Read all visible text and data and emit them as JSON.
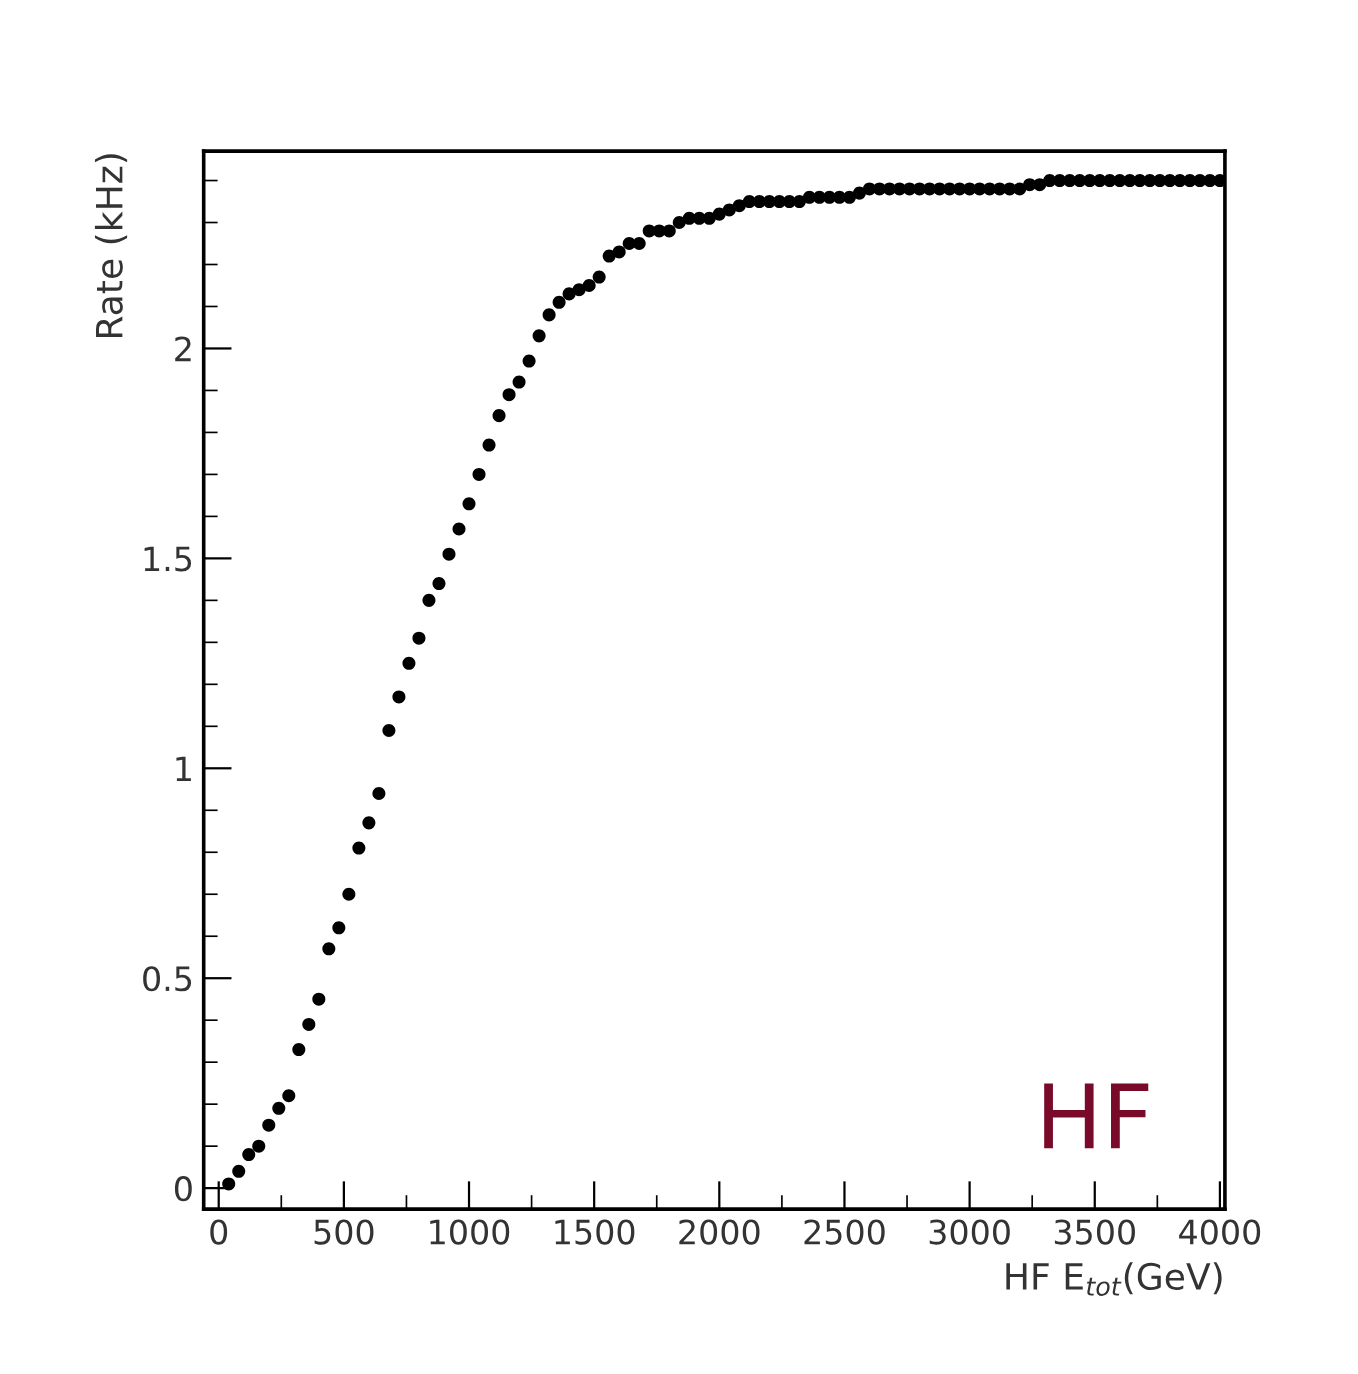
{
  "chart_data": {
    "type": "scatter",
    "xlabel": "HF E$_{tot}$(GeV)",
    "ylabel": "Rate (kHz)",
    "annotations": [
      "HF"
    ],
    "xlim": [
      -60,
      4020
    ],
    "ylim": [
      -0.05,
      2.47
    ],
    "xticks": [
      0,
      500,
      1000,
      1500,
      2000,
      2500,
      3000,
      3500,
      4000
    ],
    "yticks": [
      0,
      0.5,
      1,
      1.5,
      2
    ],
    "grid": false,
    "marker": "circle",
    "series": [
      {
        "color": "#000000",
        "x": [
          40,
          80,
          120,
          160,
          200,
          240,
          280,
          320,
          360,
          400,
          440,
          480,
          520,
          560,
          600,
          640,
          680,
          720,
          760,
          800,
          840,
          880,
          920,
          960,
          1000,
          1040,
          1080,
          1120,
          1160,
          1200,
          1240,
          1280,
          1320,
          1360,
          1400,
          1440,
          1480,
          1520,
          1560,
          1600,
          1640,
          1680,
          1720,
          1760,
          1800,
          1840,
          1880,
          1920,
          1960,
          2000,
          2040,
          2080,
          2120,
          2160,
          2200,
          2240,
          2280,
          2320,
          2360,
          2400,
          2440,
          2480,
          2520,
          2560,
          2600,
          2640,
          2680,
          2720,
          2760,
          2800,
          2840,
          2880,
          2920,
          2960,
          3000,
          3040,
          3080,
          3120,
          3160,
          3200,
          3240,
          3280,
          3320,
          3360,
          3400,
          3440,
          3480,
          3520,
          3560,
          3600,
          3640,
          3680,
          3720,
          3760,
          3800,
          3840,
          3880,
          3920,
          3960,
          4000
        ],
        "values": [
          0.01,
          0.04,
          0.08,
          0.1,
          0.15,
          0.19,
          0.22,
          0.33,
          0.39,
          0.45,
          0.57,
          0.62,
          0.7,
          0.81,
          0.87,
          0.94,
          1.09,
          1.17,
          1.25,
          1.31,
          1.4,
          1.44,
          1.51,
          1.57,
          1.63,
          1.7,
          1.77,
          1.84,
          1.89,
          1.92,
          1.97,
          2.03,
          2.08,
          2.11,
          2.13,
          2.14,
          2.15,
          2.17,
          2.22,
          2.23,
          2.25,
          2.25,
          2.28,
          2.28,
          2.28,
          2.3,
          2.31,
          2.31,
          2.31,
          2.32,
          2.33,
          2.34,
          2.35,
          2.35,
          2.35,
          2.35,
          2.35,
          2.35,
          2.36,
          2.36,
          2.36,
          2.36,
          2.36,
          2.37,
          2.38,
          2.38,
          2.38,
          2.38,
          2.38,
          2.38,
          2.38,
          2.38,
          2.38,
          2.38,
          2.38,
          2.38,
          2.38,
          2.38,
          2.38,
          2.38,
          2.39,
          2.39,
          2.4,
          2.4,
          2.4,
          2.4,
          2.4,
          2.4,
          2.4,
          2.4,
          2.4,
          2.4,
          2.4,
          2.4,
          2.4,
          2.4,
          2.4,
          2.4,
          2.4,
          2.4
        ]
      }
    ]
  }
}
